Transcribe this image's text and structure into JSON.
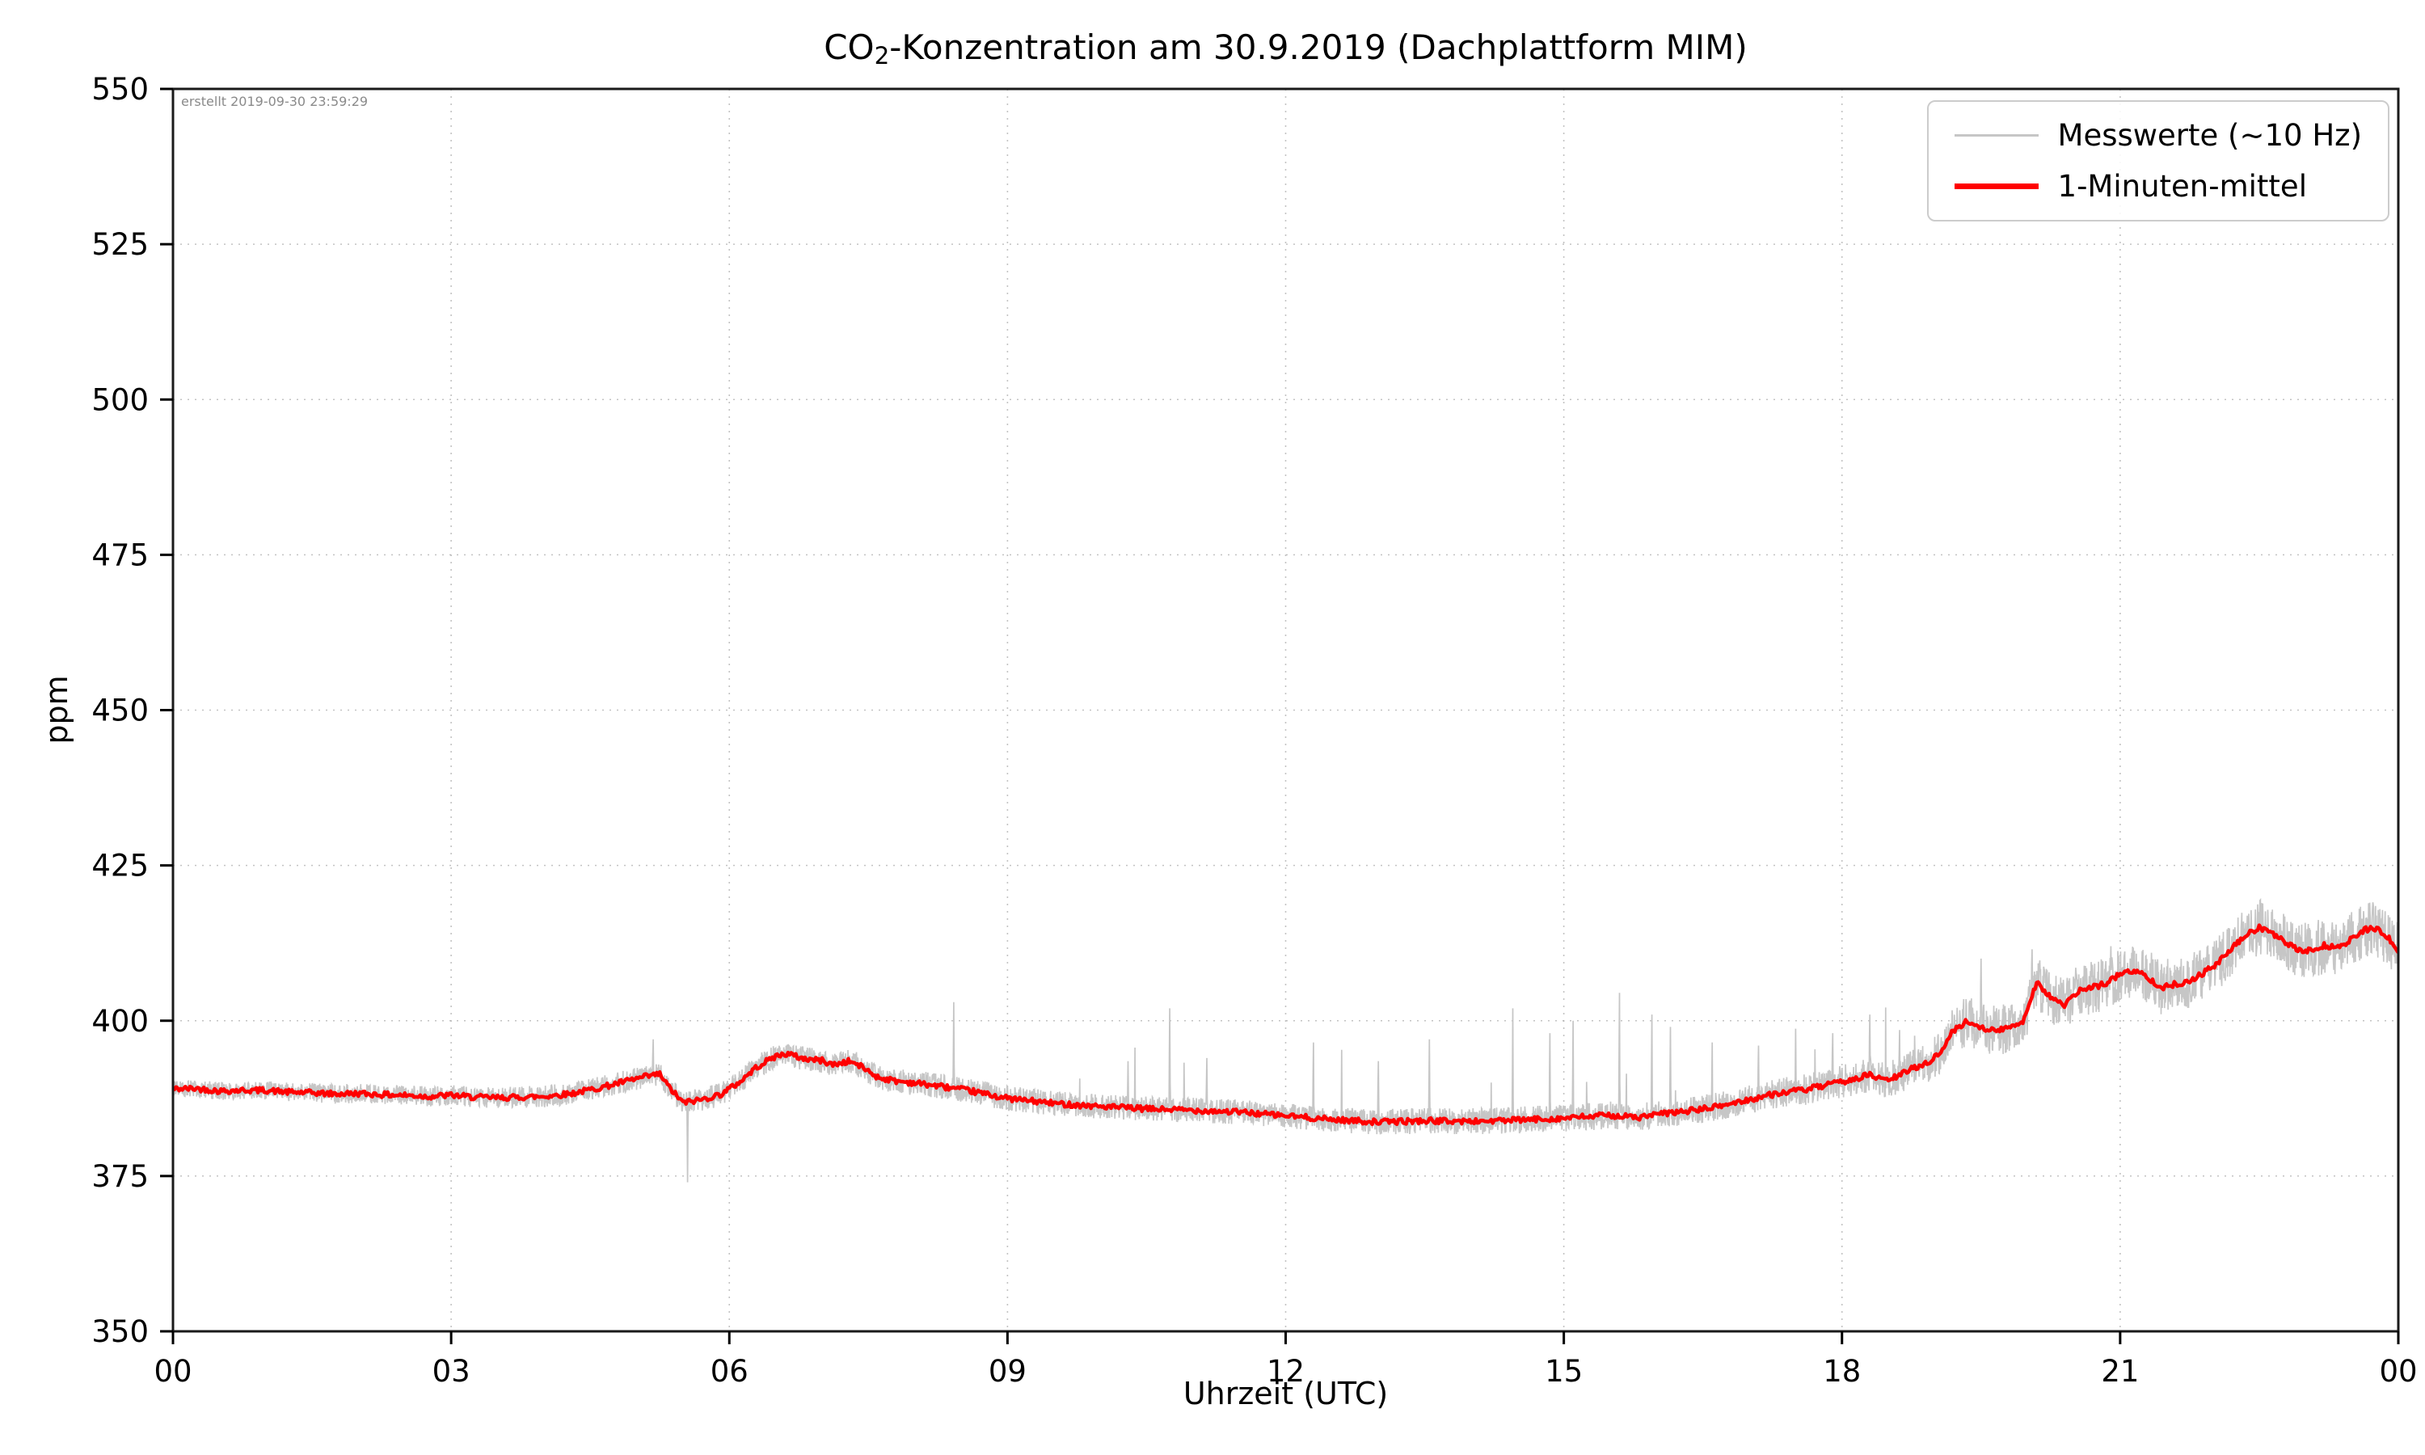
{
  "meta": {
    "created_note": "erstellt 2019-09-30 23:59:29"
  },
  "title": {
    "prefix": "CO",
    "sub": "2",
    "suffix": "-Konzentration am 30.9.2019 (Dachplattform MIM)"
  },
  "axes": {
    "xlabel": "Uhrzeit (UTC)",
    "ylabel": "ppm",
    "xlim": [
      0,
      24
    ],
    "ylim": [
      350,
      550
    ],
    "xticks": [
      0,
      3,
      6,
      9,
      12,
      15,
      18,
      21,
      24
    ],
    "xtick_labels": [
      "00",
      "03",
      "06",
      "09",
      "12",
      "15",
      "18",
      "21",
      "00"
    ],
    "yticks": [
      350,
      375,
      400,
      425,
      450,
      475,
      500,
      525,
      550
    ],
    "grid": "dotted"
  },
  "legend": {
    "position": "top-right",
    "entries": [
      {
        "label": "Messwerte (~10 Hz)",
        "color": "#c6c6c6",
        "line_width": 3
      },
      {
        "label": "1-Minuten-mittel",
        "color": "#ff0000",
        "line_width": 7
      }
    ]
  },
  "chart_data": {
    "type": "line",
    "title": "CO2-Konzentration am 30.9.2019 (Dachplattform MIM)",
    "xlabel": "Uhrzeit (UTC)",
    "ylabel": "ppm",
    "xlim": [
      0,
      24
    ],
    "ylim": [
      350,
      550
    ],
    "xticks": [
      0,
      3,
      6,
      9,
      12,
      15,
      18,
      21,
      24
    ],
    "xtick_labels": [
      "00",
      "03",
      "06",
      "09",
      "12",
      "15",
      "18",
      "21",
      "00"
    ],
    "yticks": [
      350,
      375,
      400,
      425,
      450,
      475,
      500,
      525,
      550
    ],
    "annotation": "erstellt 2019-09-30 23:59:29",
    "legend_position": "top-right",
    "series": [
      {
        "name": "1-Minuten-mittel",
        "color": "#ff0000",
        "role": "1-minute mean of measurements, ppm vs hour UTC",
        "control_points": [
          [
            0,
            389.0
          ],
          [
            0.25,
            389.1
          ],
          [
            0.5,
            388.7
          ],
          [
            0.75,
            388.8
          ],
          [
            1,
            388.8
          ],
          [
            1.25,
            388.5
          ],
          [
            1.5,
            388.4
          ],
          [
            1.75,
            388.2
          ],
          [
            2,
            388.3
          ],
          [
            2.25,
            388.1
          ],
          [
            2.5,
            388.0
          ],
          [
            2.75,
            387.8
          ],
          [
            3,
            388.0
          ],
          [
            3.25,
            387.7
          ],
          [
            3.5,
            387.6
          ],
          [
            3.75,
            387.7
          ],
          [
            4,
            387.8
          ],
          [
            4.3,
            388.3
          ],
          [
            4.6,
            389.2
          ],
          [
            4.9,
            390.3
          ],
          [
            5.1,
            391.0
          ],
          [
            5.25,
            391.4
          ],
          [
            5.35,
            389.3
          ],
          [
            5.5,
            386.8
          ],
          [
            5.7,
            387.3
          ],
          [
            5.9,
            388.1
          ],
          [
            6.1,
            390.0
          ],
          [
            6.3,
            392.6
          ],
          [
            6.5,
            394.3
          ],
          [
            6.62,
            394.7
          ],
          [
            6.8,
            393.9
          ],
          [
            7.0,
            393.6
          ],
          [
            7.12,
            392.9
          ],
          [
            7.3,
            393.5
          ],
          [
            7.45,
            392.4
          ],
          [
            7.6,
            390.9
          ],
          [
            7.8,
            390.3
          ],
          [
            8,
            390.0
          ],
          [
            8.3,
            389.4
          ],
          [
            8.6,
            388.7
          ],
          [
            9,
            387.5
          ],
          [
            9.5,
            386.7
          ],
          [
            10,
            386.2
          ],
          [
            10.5,
            385.8
          ],
          [
            11,
            385.6
          ],
          [
            11.5,
            385.3
          ],
          [
            12,
            384.7
          ],
          [
            12.5,
            384.1
          ],
          [
            13,
            383.7
          ],
          [
            13.5,
            383.9
          ],
          [
            14,
            383.8
          ],
          [
            14.5,
            384.0
          ],
          [
            15,
            384.3
          ],
          [
            15.5,
            384.8
          ],
          [
            15.8,
            384.4
          ],
          [
            16,
            384.9
          ],
          [
            16.3,
            385.4
          ],
          [
            16.6,
            386.0
          ],
          [
            17,
            387.3
          ],
          [
            17.3,
            388.3
          ],
          [
            17.6,
            388.9
          ],
          [
            17.9,
            389.8
          ],
          [
            18.1,
            390.5
          ],
          [
            18.3,
            391.3
          ],
          [
            18.45,
            390.4
          ],
          [
            18.6,
            391.0
          ],
          [
            18.75,
            392.3
          ],
          [
            18.9,
            393.1
          ],
          [
            19.05,
            394.6
          ],
          [
            19.2,
            398.4
          ],
          [
            19.35,
            399.9
          ],
          [
            19.5,
            399.0
          ],
          [
            19.65,
            398.3
          ],
          [
            19.8,
            398.9
          ],
          [
            19.95,
            399.9
          ],
          [
            20.1,
            406.2
          ],
          [
            20.25,
            403.8
          ],
          [
            20.4,
            402.4
          ],
          [
            20.55,
            404.8
          ],
          [
            20.7,
            405.3
          ],
          [
            20.85,
            406.1
          ],
          [
            21,
            407.5
          ],
          [
            21.15,
            408.1
          ],
          [
            21.3,
            407.0
          ],
          [
            21.45,
            405.3
          ],
          [
            21.6,
            405.9
          ],
          [
            21.75,
            406.4
          ],
          [
            21.9,
            407.7
          ],
          [
            22.05,
            409.2
          ],
          [
            22.2,
            411.6
          ],
          [
            22.35,
            413.6
          ],
          [
            22.5,
            415.1
          ],
          [
            22.62,
            414.2
          ],
          [
            22.75,
            412.9
          ],
          [
            22.9,
            411.5
          ],
          [
            23.05,
            411.2
          ],
          [
            23.2,
            412.1
          ],
          [
            23.35,
            411.7
          ],
          [
            23.5,
            413.2
          ],
          [
            23.65,
            414.7
          ],
          [
            23.75,
            414.9
          ],
          [
            23.85,
            413.9
          ],
          [
            23.95,
            412.4
          ],
          [
            24,
            411.2
          ]
        ]
      },
      {
        "name": "Messwerte (~10 Hz)",
        "color": "#c6c6c6",
        "role": "raw ~10 Hz measurements: mean series plus noise band and spikes",
        "noise_profile": [
          [
            0,
            1.4
          ],
          [
            4.5,
            1.8
          ],
          [
            8,
            2.0
          ],
          [
            12,
            2.0
          ],
          [
            17,
            2.3
          ],
          [
            18.8,
            3.0
          ],
          [
            19.2,
            4.0
          ],
          [
            22,
            4.5
          ],
          [
            24,
            4.5
          ]
        ],
        "spikes": [
          [
            5.18,
            397
          ],
          [
            5.55,
            374
          ],
          [
            8.42,
            403
          ],
          [
            10.3,
            393.5
          ],
          [
            10.75,
            402
          ],
          [
            11.15,
            394
          ],
          [
            12.3,
            396.5
          ],
          [
            13.0,
            393.5
          ],
          [
            13.55,
            397
          ],
          [
            14.45,
            402
          ],
          [
            14.85,
            398
          ],
          [
            15.1,
            400
          ],
          [
            15.6,
            404.5
          ],
          [
            15.95,
            401
          ],
          [
            16.15,
            399
          ],
          [
            16.6,
            396.5
          ],
          [
            17.1,
            396
          ],
          [
            17.9,
            398
          ],
          [
            18.3,
            401
          ],
          [
            18.62,
            398.5
          ],
          [
            19.5,
            410
          ],
          [
            20.05,
            411.5
          ],
          [
            20.9,
            412
          ]
        ]
      }
    ]
  }
}
